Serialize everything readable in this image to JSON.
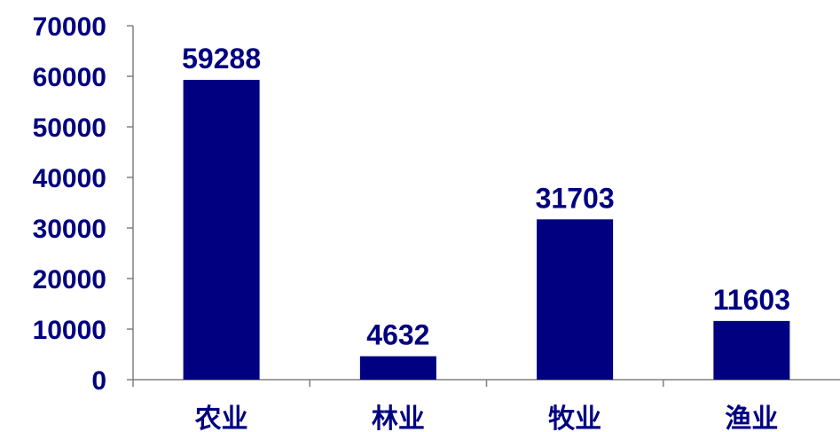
{
  "chart_data": {
    "type": "bar",
    "categories": [
      "农业",
      "林业",
      "牧业",
      "渔业"
    ],
    "values": [
      59288,
      4632,
      31703,
      11603
    ],
    "data_labels": [
      "59288",
      "4632",
      "31703",
      "11603"
    ],
    "ylim": [
      0,
      70000
    ],
    "yticks": [
      0,
      10000,
      20000,
      30000,
      40000,
      50000,
      60000,
      70000
    ],
    "ytick_labels": [
      "0",
      "10000",
      "20000",
      "30000",
      "40000",
      "50000",
      "60000",
      "70000"
    ],
    "grid": false,
    "legend": "none"
  },
  "colors": {
    "bar": "#000080",
    "text": "#000080",
    "axis": "#808080"
  }
}
